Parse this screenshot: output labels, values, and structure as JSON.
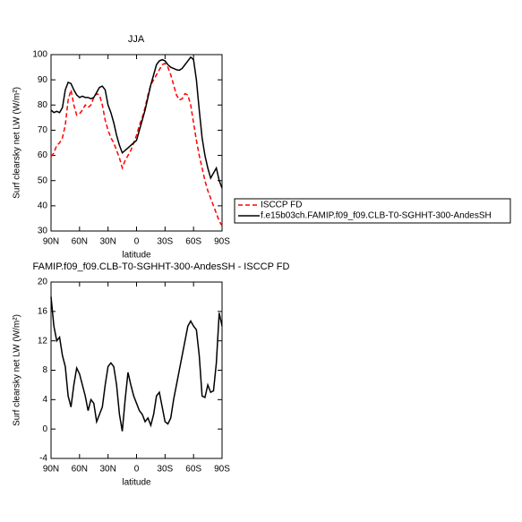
{
  "chart_data": [
    {
      "type": "line",
      "title": "JJA",
      "xlabel": "latitude",
      "ylabel": "Surf clearsky net LW (W/m²)",
      "x": [
        90,
        87,
        84,
        81,
        78,
        75,
        72,
        69,
        66,
        63,
        60,
        57,
        54,
        51,
        48,
        45,
        42,
        39,
        36,
        33,
        30,
        27,
        24,
        21,
        18,
        15,
        12,
        9,
        6,
        3,
        0,
        -3,
        -6,
        -9,
        -12,
        -15,
        -18,
        -21,
        -24,
        -27,
        -30,
        -33,
        -36,
        -39,
        -42,
        -45,
        -48,
        -51,
        -54,
        -57,
        -60,
        -63,
        -66,
        -69,
        -72,
        -75,
        -78,
        -81,
        -84,
        -87,
        -90
      ],
      "series": [
        {
          "name": "ISCCP FD",
          "color": "#ff0000",
          "dash": true,
          "values": [
            59.5,
            61,
            64,
            65,
            67,
            72,
            82,
            86,
            80,
            76,
            76.5,
            78,
            80,
            79,
            80,
            83,
            84.5,
            84,
            80,
            74,
            70,
            67,
            65,
            62,
            59,
            55,
            58,
            60,
            62,
            65,
            68,
            72,
            75,
            79,
            84,
            88,
            90,
            92,
            94,
            96,
            96.5,
            95,
            92,
            88,
            84,
            82,
            82.5,
            84.5,
            84,
            80,
            73,
            66,
            60,
            55,
            50,
            46,
            43,
            40,
            37,
            34,
            32
          ]
        },
        {
          "name": "f.e15b03ch.FAMIP.f09_f09.CLB-T0-SGHHT-300-AndesSH",
          "color": "#000000",
          "dash": false,
          "values": [
            78,
            77,
            77.5,
            77,
            79,
            86,
            89,
            88.5,
            86,
            84,
            83,
            83.5,
            83,
            83,
            82.5,
            83,
            85,
            87,
            87.5,
            86,
            80,
            77,
            73,
            68,
            64,
            61,
            62,
            63,
            64,
            65,
            66,
            70,
            74,
            78,
            83,
            88,
            92,
            96,
            97.5,
            98,
            97.5,
            96,
            95,
            94.5,
            94,
            93.8,
            94.5,
            96,
            97.5,
            99,
            98,
            90,
            78,
            67,
            60,
            55,
            51,
            53,
            55,
            50,
            47
          ]
        }
      ],
      "xlim": [
        90,
        -90
      ],
      "xticks": [
        {
          "value": 90,
          "label": "90N"
        },
        {
          "value": 60,
          "label": "60N"
        },
        {
          "value": 30,
          "label": "30N"
        },
        0,
        {
          "value": -30,
          "label": "30S"
        },
        {
          "value": -60,
          "label": "60S"
        },
        {
          "value": -90,
          "label": "90S"
        }
      ],
      "ylim": [
        30,
        100
      ],
      "yticks": [
        30,
        40,
        50,
        60,
        70,
        80,
        90,
        100
      ],
      "legend": "right"
    },
    {
      "type": "line",
      "title": "FAMIP.f09_f09.CLB-T0-SGHHT-300-AndesSH - ISCCP FD",
      "xlabel": "latitude",
      "ylabel": "Surf clearsky net LW (W/m²)",
      "x": [
        90,
        87,
        84,
        81,
        78,
        75,
        72,
        69,
        66,
        63,
        60,
        57,
        54,
        51,
        48,
        45,
        42,
        39,
        36,
        33,
        30,
        27,
        24,
        21,
        18,
        15,
        12,
        9,
        6,
        3,
        0,
        -3,
        -6,
        -9,
        -12,
        -15,
        -18,
        -21,
        -24,
        -27,
        -30,
        -33,
        -36,
        -39,
        -42,
        -45,
        -48,
        -51,
        -54,
        -57,
        -60,
        -63,
        -66,
        -69,
        -72,
        -75,
        -78,
        -81,
        -84,
        -87,
        -90
      ],
      "series": [
        {
          "color": "#000000",
          "dash": false,
          "values": [
            18,
            14,
            12,
            12.5,
            10,
            8.5,
            4.5,
            3,
            6,
            8.3,
            7.5,
            6,
            4.5,
            2.5,
            4,
            3.5,
            1,
            2,
            3,
            6,
            8.5,
            9,
            8.5,
            6,
            2,
            -0.3,
            4,
            7.7,
            6,
            4.5,
            3.5,
            2.5,
            2,
            1,
            1.5,
            0.5,
            2,
            4.5,
            5,
            3,
            1,
            0.7,
            1.5,
            4,
            6,
            8,
            10,
            12,
            14,
            14.7,
            14,
            13.5,
            10,
            4.5,
            4.3,
            6,
            5,
            5.2,
            9,
            15.8,
            14
          ]
        }
      ],
      "xlim": [
        90,
        -90
      ],
      "xticks": [
        {
          "value": 90,
          "label": "90N"
        },
        {
          "value": 60,
          "label": "60N"
        },
        {
          "value": 30,
          "label": "30N"
        },
        0,
        {
          "value": -30,
          "label": "30S"
        },
        {
          "value": -60,
          "label": "60S"
        },
        {
          "value": -90,
          "label": "90S"
        }
      ],
      "ylim": [
        -4,
        20
      ],
      "yticks": [
        -4,
        0,
        4,
        8,
        12,
        16,
        20
      ]
    }
  ]
}
